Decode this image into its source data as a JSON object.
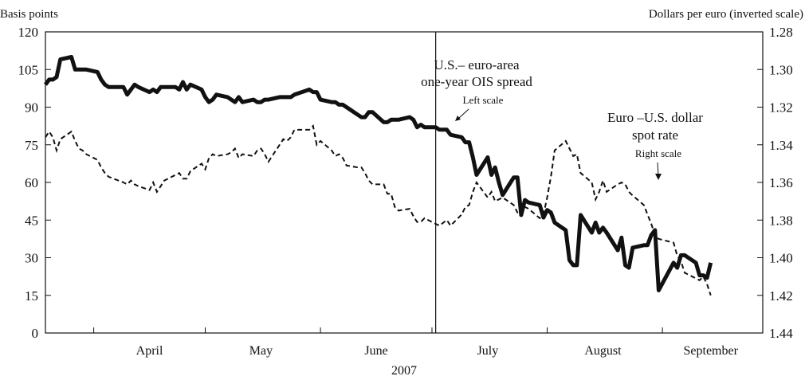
{
  "chart_data": {
    "type": "line",
    "year_label": "2007",
    "left_axis": {
      "title": "Basis points",
      "ylim": [
        0,
        120
      ],
      "ticks": [
        0,
        15,
        30,
        45,
        60,
        75,
        90,
        105,
        120
      ]
    },
    "right_axis": {
      "title": "Dollars per euro (inverted scale)",
      "ylim": [
        1.28,
        1.44
      ],
      "inverted": true,
      "ticks": [
        "1.28",
        "1.30",
        "1.32",
        "1.34",
        "1.36",
        "1.38",
        "1.40",
        "1.42",
        "1.44"
      ]
    },
    "x_axis": {
      "start_date": "2007-03-19",
      "end_date": "2007-09-28",
      "month_ticks": [
        "2007-04-01",
        "2007-05-01",
        "2007-06-01",
        "2007-07-01",
        "2007-08-01",
        "2007-09-01"
      ],
      "month_labels": [
        "April",
        "May",
        "June",
        "July",
        "August",
        "September"
      ],
      "vertical_line_date": "2007-07-02"
    },
    "grid": false,
    "series": [
      {
        "name": "U.S.–euro-area one-year OIS spread",
        "axis": "left",
        "style": "solid-thick",
        "points": [
          [
            "2007-03-19",
            99
          ],
          [
            "2007-03-20",
            101
          ],
          [
            "2007-03-21",
            101
          ],
          [
            "2007-03-22",
            102
          ],
          [
            "2007-03-23",
            109
          ],
          [
            "2007-03-26",
            110
          ],
          [
            "2007-03-27",
            105
          ],
          [
            "2007-03-28",
            105
          ],
          [
            "2007-03-29",
            105
          ],
          [
            "2007-03-30",
            105
          ],
          [
            "2007-04-02",
            104
          ],
          [
            "2007-04-03",
            101
          ],
          [
            "2007-04-04",
            99
          ],
          [
            "2007-04-05",
            98
          ],
          [
            "2007-04-09",
            98
          ],
          [
            "2007-04-10",
            95
          ],
          [
            "2007-04-11",
            97
          ],
          [
            "2007-04-12",
            99
          ],
          [
            "2007-04-13",
            98
          ],
          [
            "2007-04-16",
            96
          ],
          [
            "2007-04-17",
            97
          ],
          [
            "2007-04-18",
            96
          ],
          [
            "2007-04-19",
            98
          ],
          [
            "2007-04-20",
            98
          ],
          [
            "2007-04-23",
            98
          ],
          [
            "2007-04-24",
            97
          ],
          [
            "2007-04-25",
            100
          ],
          [
            "2007-04-26",
            97
          ],
          [
            "2007-04-27",
            99
          ],
          [
            "2007-04-30",
            97
          ],
          [
            "2007-05-01",
            94
          ],
          [
            "2007-05-02",
            92
          ],
          [
            "2007-05-03",
            93
          ],
          [
            "2007-05-04",
            95
          ],
          [
            "2007-05-07",
            94
          ],
          [
            "2007-05-08",
            93
          ],
          [
            "2007-05-09",
            92
          ],
          [
            "2007-05-10",
            94
          ],
          [
            "2007-05-11",
            92
          ],
          [
            "2007-05-14",
            93
          ],
          [
            "2007-05-15",
            92
          ],
          [
            "2007-05-16",
            92
          ],
          [
            "2007-05-17",
            93
          ],
          [
            "2007-05-18",
            93
          ],
          [
            "2007-05-21",
            94
          ],
          [
            "2007-05-22",
            94
          ],
          [
            "2007-05-23",
            94
          ],
          [
            "2007-05-24",
            94
          ],
          [
            "2007-05-25",
            95
          ],
          [
            "2007-05-29",
            97
          ],
          [
            "2007-05-30",
            96
          ],
          [
            "2007-05-31",
            96
          ],
          [
            "2007-06-01",
            93
          ],
          [
            "2007-06-04",
            92
          ],
          [
            "2007-06-05",
            92
          ],
          [
            "2007-06-06",
            91
          ],
          [
            "2007-06-07",
            91
          ],
          [
            "2007-06-08",
            90
          ],
          [
            "2007-06-11",
            87
          ],
          [
            "2007-06-12",
            86
          ],
          [
            "2007-06-13",
            86
          ],
          [
            "2007-06-14",
            88
          ],
          [
            "2007-06-15",
            88
          ],
          [
            "2007-06-18",
            84
          ],
          [
            "2007-06-19",
            84
          ],
          [
            "2007-06-20",
            85
          ],
          [
            "2007-06-21",
            85
          ],
          [
            "2007-06-22",
            85
          ],
          [
            "2007-06-25",
            86
          ],
          [
            "2007-06-26",
            85
          ],
          [
            "2007-06-27",
            82
          ],
          [
            "2007-06-28",
            83
          ],
          [
            "2007-06-29",
            82
          ],
          [
            "2007-07-02",
            82
          ],
          [
            "2007-07-03",
            81
          ],
          [
            "2007-07-05",
            81
          ],
          [
            "2007-07-06",
            79
          ],
          [
            "2007-07-09",
            78
          ],
          [
            "2007-07-10",
            76
          ],
          [
            "2007-07-11",
            76
          ],
          [
            "2007-07-12",
            70
          ],
          [
            "2007-07-13",
            63
          ],
          [
            "2007-07-16",
            70
          ],
          [
            "2007-07-17",
            63
          ],
          [
            "2007-07-18",
            66
          ],
          [
            "2007-07-19",
            60
          ],
          [
            "2007-07-20",
            55
          ],
          [
            "2007-07-23",
            62
          ],
          [
            "2007-07-24",
            62
          ],
          [
            "2007-07-25",
            47
          ],
          [
            "2007-07-26",
            53
          ],
          [
            "2007-07-27",
            52
          ],
          [
            "2007-07-30",
            51
          ],
          [
            "2007-07-31",
            46
          ],
          [
            "2007-08-01",
            49
          ],
          [
            "2007-08-02",
            48
          ],
          [
            "2007-08-03",
            44
          ],
          [
            "2007-08-06",
            41
          ],
          [
            "2007-08-07",
            29
          ],
          [
            "2007-08-08",
            27
          ],
          [
            "2007-08-09",
            27
          ],
          [
            "2007-08-10",
            47
          ],
          [
            "2007-08-13",
            40
          ],
          [
            "2007-08-14",
            44
          ],
          [
            "2007-08-15",
            40
          ],
          [
            "2007-08-16",
            42
          ],
          [
            "2007-08-17",
            40
          ],
          [
            "2007-08-20",
            33
          ],
          [
            "2007-08-21",
            38
          ],
          [
            "2007-08-22",
            27
          ],
          [
            "2007-08-23",
            26
          ],
          [
            "2007-08-24",
            34
          ],
          [
            "2007-08-27",
            35
          ],
          [
            "2007-08-28",
            35
          ],
          [
            "2007-08-29",
            39
          ],
          [
            "2007-08-30",
            41
          ],
          [
            "2007-08-31",
            17
          ],
          [
            "2007-09-04",
            28
          ],
          [
            "2007-09-05",
            26
          ],
          [
            "2007-09-06",
            31
          ],
          [
            "2007-09-07",
            31
          ],
          [
            "2007-09-10",
            28
          ],
          [
            "2007-09-11",
            23
          ],
          [
            "2007-09-12",
            23
          ],
          [
            "2007-09-13",
            22
          ],
          [
            "2007-09-14",
            28
          ]
        ]
      },
      {
        "name": "Euro–U.S. dollar spot rate",
        "axis": "right",
        "style": "dashed",
        "points": [
          [
            "2007-03-19",
            1.336
          ],
          [
            "2007-03-20",
            1.333
          ],
          [
            "2007-03-21",
            1.336
          ],
          [
            "2007-03-22",
            1.343
          ],
          [
            "2007-03-23",
            1.337
          ],
          [
            "2007-03-26",
            1.333
          ],
          [
            "2007-03-27",
            1.338
          ],
          [
            "2007-03-28",
            1.342
          ],
          [
            "2007-03-29",
            1.343
          ],
          [
            "2007-03-30",
            1.345
          ],
          [
            "2007-04-02",
            1.348
          ],
          [
            "2007-04-03",
            1.352
          ],
          [
            "2007-04-04",
            1.355
          ],
          [
            "2007-04-05",
            1.357
          ],
          [
            "2007-04-09",
            1.36
          ],
          [
            "2007-04-10",
            1.361
          ],
          [
            "2007-04-11",
            1.359
          ],
          [
            "2007-04-12",
            1.361
          ],
          [
            "2007-04-13",
            1.362
          ],
          [
            "2007-04-16",
            1.364
          ],
          [
            "2007-04-17",
            1.36
          ],
          [
            "2007-04-18",
            1.365
          ],
          [
            "2007-04-19",
            1.362
          ],
          [
            "2007-04-20",
            1.359
          ],
          [
            "2007-04-23",
            1.356
          ],
          [
            "2007-04-24",
            1.355
          ],
          [
            "2007-04-25",
            1.358
          ],
          [
            "2007-04-26",
            1.358
          ],
          [
            "2007-04-27",
            1.354
          ],
          [
            "2007-04-30",
            1.35
          ],
          [
            "2007-05-01",
            1.353
          ],
          [
            "2007-05-02",
            1.347
          ],
          [
            "2007-05-03",
            1.345
          ],
          [
            "2007-05-04",
            1.346
          ],
          [
            "2007-05-07",
            1.345
          ],
          [
            "2007-05-08",
            1.344
          ],
          [
            "2007-05-09",
            1.342
          ],
          [
            "2007-05-10",
            1.347
          ],
          [
            "2007-05-11",
            1.345
          ],
          [
            "2007-05-14",
            1.346
          ],
          [
            "2007-05-15",
            1.343
          ],
          [
            "2007-05-16",
            1.342
          ],
          [
            "2007-05-17",
            1.345
          ],
          [
            "2007-05-18",
            1.349
          ],
          [
            "2007-05-21",
            1.34
          ],
          [
            "2007-05-22",
            1.337
          ],
          [
            "2007-05-23",
            1.338
          ],
          [
            "2007-05-24",
            1.336
          ],
          [
            "2007-05-25",
            1.332
          ],
          [
            "2007-05-29",
            1.332
          ],
          [
            "2007-05-30",
            1.33
          ],
          [
            "2007-05-31",
            1.34
          ],
          [
            "2007-06-01",
            1.338
          ],
          [
            "2007-06-04",
            1.343
          ],
          [
            "2007-06-05",
            1.346
          ],
          [
            "2007-06-06",
            1.345
          ],
          [
            "2007-06-07",
            1.347
          ],
          [
            "2007-06-08",
            1.351
          ],
          [
            "2007-06-11",
            1.352
          ],
          [
            "2007-06-12",
            1.352
          ],
          [
            "2007-06-13",
            1.355
          ],
          [
            "2007-06-14",
            1.359
          ],
          [
            "2007-06-15",
            1.361
          ],
          [
            "2007-06-18",
            1.361
          ],
          [
            "2007-06-19",
            1.366
          ],
          [
            "2007-06-20",
            1.366
          ],
          [
            "2007-06-21",
            1.373
          ],
          [
            "2007-06-22",
            1.375
          ],
          [
            "2007-06-25",
            1.374
          ],
          [
            "2007-06-26",
            1.378
          ],
          [
            "2007-06-27",
            1.381
          ],
          [
            "2007-06-28",
            1.381
          ],
          [
            "2007-06-29",
            1.379
          ],
          [
            "2007-07-02",
            1.382
          ],
          [
            "2007-07-03",
            1.383
          ],
          [
            "2007-07-05",
            1.38
          ],
          [
            "2007-07-06",
            1.383
          ],
          [
            "2007-07-09",
            1.377
          ],
          [
            "2007-07-10",
            1.373
          ],
          [
            "2007-07-11",
            1.372
          ],
          [
            "2007-07-12",
            1.365
          ],
          [
            "2007-07-13",
            1.36
          ],
          [
            "2007-07-16",
            1.368
          ],
          [
            "2007-07-17",
            1.365
          ],
          [
            "2007-07-18",
            1.37
          ],
          [
            "2007-07-19",
            1.369
          ],
          [
            "2007-07-20",
            1.368
          ],
          [
            "2007-07-23",
            1.372
          ],
          [
            "2007-07-24",
            1.376
          ],
          [
            "2007-07-25",
            1.377
          ],
          [
            "2007-07-26",
            1.373
          ],
          [
            "2007-07-27",
            1.374
          ],
          [
            "2007-07-30",
            1.379
          ],
          [
            "2007-07-31",
            1.377
          ],
          [
            "2007-08-01",
            1.368
          ],
          [
            "2007-08-02",
            1.357
          ],
          [
            "2007-08-03",
            1.343
          ],
          [
            "2007-08-06",
            1.338
          ],
          [
            "2007-08-07",
            1.342
          ],
          [
            "2007-08-08",
            1.346
          ],
          [
            "2007-08-09",
            1.345
          ],
          [
            "2007-08-10",
            1.355
          ],
          [
            "2007-08-13",
            1.36
          ],
          [
            "2007-08-14",
            1.369
          ],
          [
            "2007-08-15",
            1.365
          ],
          [
            "2007-08-16",
            1.359
          ],
          [
            "2007-08-17",
            1.365
          ],
          [
            "2007-08-20",
            1.361
          ],
          [
            "2007-08-21",
            1.36
          ],
          [
            "2007-08-22",
            1.361
          ],
          [
            "2007-08-23",
            1.365
          ],
          [
            "2007-08-24",
            1.367
          ],
          [
            "2007-08-27",
            1.372
          ],
          [
            "2007-08-28",
            1.377
          ],
          [
            "2007-08-29",
            1.382
          ],
          [
            "2007-08-30",
            1.388
          ],
          [
            "2007-08-31",
            1.39
          ],
          [
            "2007-09-04",
            1.392
          ],
          [
            "2007-09-05",
            1.399
          ],
          [
            "2007-09-06",
            1.402
          ],
          [
            "2007-09-07",
            1.408
          ],
          [
            "2007-09-10",
            1.411
          ],
          [
            "2007-09-11",
            1.412
          ],
          [
            "2007-09-12",
            1.41
          ],
          [
            "2007-09-13",
            1.414
          ],
          [
            "2007-09-14",
            1.42
          ]
        ]
      }
    ],
    "annotations": [
      {
        "name": "ois-label",
        "lines": [
          "U.S.– euro-area",
          "one-year OIS spread"
        ],
        "sub": "Left scale"
      },
      {
        "name": "fx-label",
        "lines": [
          "Euro –U.S. dollar",
          "spot rate"
        ],
        "sub": "Right scale"
      }
    ]
  }
}
